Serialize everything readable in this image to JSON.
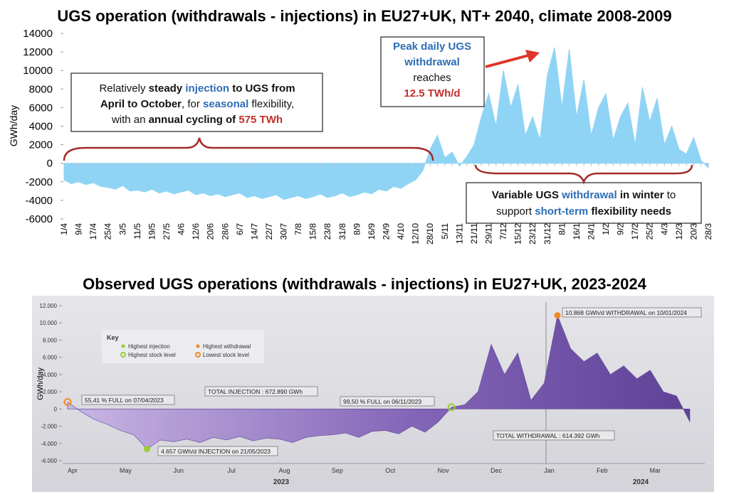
{
  "chart_data": [
    {
      "type": "area",
      "title": "UGS operation (withdrawals - injections) in EU27+UK, NT+ 2040, climate 2008-2009",
      "y_label": "GWh/day",
      "color": "#8fd4f5",
      "ylim": [
        -6000,
        14000
      ],
      "yticks": [
        -6000,
        -4000,
        -2000,
        0,
        2000,
        4000,
        6000,
        8000,
        10000,
        12000,
        14000
      ],
      "categories": [
        "1/4",
        null,
        "9/4",
        null,
        "17/4",
        null,
        "25/4",
        null,
        "3/5",
        null,
        "11/5",
        null,
        "19/5",
        null,
        "27/5",
        null,
        "4/6",
        null,
        "12/6",
        null,
        "20/6",
        null,
        "28/6",
        null,
        "6/7",
        null,
        "14/7",
        null,
        "22/7",
        null,
        "30/7",
        null,
        "7/8",
        null,
        "15/8",
        null,
        "23/8",
        null,
        "31/8",
        null,
        "8/9",
        null,
        "16/9",
        null,
        "24/9",
        null,
        "4/10",
        null,
        "12/10",
        null,
        "28/10",
        null,
        "5/11",
        null,
        "13/11",
        null,
        "21/11",
        null,
        "29/11",
        null,
        "7/12",
        null,
        "15/12",
        null,
        "23/12",
        null,
        "31/12",
        null,
        "8/1",
        null,
        "16/1",
        null,
        "24/1",
        null,
        "1/2",
        null,
        "9/2",
        null,
        "17/2",
        null,
        "25/2",
        null,
        "4/3",
        null,
        "12/3",
        null,
        "20/3",
        null,
        "28/3"
      ],
      "values": [
        -1800,
        -2200,
        -2000,
        -2300,
        -2100,
        -2500,
        -2600,
        -2800,
        -2400,
        -3000,
        -2900,
        -3100,
        -2800,
        -3200,
        -3000,
        -3300,
        -3100,
        -2900,
        -3400,
        -3200,
        -3500,
        -3300,
        -3600,
        -3400,
        -3200,
        -3700,
        -3500,
        -3800,
        -3600,
        -3400,
        -3900,
        -3700,
        -3500,
        -3800,
        -3600,
        -3300,
        -3700,
        -3500,
        -3200,
        -3600,
        -3400,
        -3100,
        -3300,
        -2800,
        -3000,
        -2500,
        -2700,
        -2200,
        -1800,
        -800,
        1500,
        3000,
        600,
        1200,
        -300,
        700,
        2000,
        5000,
        7500,
        4000,
        10000,
        6000,
        8500,
        3000,
        5000,
        2500,
        9500,
        12500,
        6000,
        12300,
        5000,
        9000,
        3000,
        6000,
        7500,
        2500,
        5000,
        6500,
        2000,
        8200,
        4500,
        7000,
        2000,
        4000,
        1500,
        1000,
        2800,
        300,
        -500
      ],
      "annotations": [
        {
          "lines": [
            [
              {
                "text": "Relatively ",
                "style": "normal"
              },
              {
                "text": "steady ",
                "style": "bold"
              },
              {
                "text": "injection",
                "style": "blue"
              },
              {
                "text": " to UGS from",
                "style": "bold"
              }
            ],
            [
              {
                "text": "April to October",
                "style": "bold"
              },
              {
                "text": ", for ",
                "style": "normal"
              },
              {
                "text": "seasonal",
                "style": "blue"
              },
              {
                "text": " flexibility,",
                "style": "normal"
              }
            ],
            [
              {
                "text": "with an ",
                "style": "normal"
              },
              {
                "text": "annual cycling of ",
                "style": "bold"
              },
              {
                "text": "575 TWh",
                "style": "red"
              }
            ]
          ]
        },
        {
          "lines": [
            [
              {
                "text": "Peak daily UGS",
                "style": "blue"
              }
            ],
            [
              {
                "text": "withdrawal",
                "style": "blue"
              }
            ],
            [
              {
                "text": "reaches",
                "style": "normal"
              }
            ],
            [
              {
                "text": "12.5 TWh/d",
                "style": "red"
              }
            ]
          ]
        },
        {
          "lines": [
            [
              {
                "text": "Variable UGS ",
                "style": "bold"
              },
              {
                "text": "withdrawal",
                "style": "blue"
              },
              {
                "text": " in winter",
                "style": "bold"
              },
              {
                "text": " to",
                "style": "normal"
              }
            ],
            [
              {
                "text": "support ",
                "style": "normal"
              },
              {
                "text": "short-term",
                "style": "blue"
              },
              {
                "text": " flexibility needs",
                "style": "bold"
              }
            ]
          ]
        }
      ]
    },
    {
      "type": "area",
      "title": "Observed UGS operations (withdrawals - injections) in EU27+UK, 2023-2024",
      "y_label": "GWh/day",
      "color": "#5e4296",
      "ylim": [
        -6000,
        12000
      ],
      "yticks": [
        {
          "value": -6000,
          "label": "-6.000"
        },
        {
          "value": -4000,
          "label": "-4.000"
        },
        {
          "value": -2000,
          "label": "-2.000"
        },
        0,
        {
          "value": 2000,
          "label": "2.000"
        },
        {
          "value": 4000,
          "label": "4.000"
        },
        {
          "value": 6000,
          "label": "6.000"
        },
        {
          "value": 8000,
          "label": "8.000"
        },
        {
          "value": 10000,
          "label": "10.000"
        },
        {
          "value": 12000,
          "label": "12.000"
        }
      ],
      "categories": [
        "Apr",
        null,
        null,
        null,
        "May",
        null,
        null,
        null,
        "Jun",
        null,
        null,
        null,
        "Jul",
        null,
        null,
        null,
        "Aug",
        null,
        null,
        null,
        "Sep",
        null,
        null,
        null,
        "Oct",
        null,
        null,
        null,
        "Nov",
        null,
        null,
        null,
        "Dec",
        null,
        null,
        null,
        "Jan",
        null,
        null,
        null,
        "Feb",
        null,
        null,
        null,
        "Mar",
        null,
        null,
        null
      ],
      "x_group_labels": [
        "2023",
        "2024"
      ],
      "values": [
        800,
        -300,
        -1200,
        -1800,
        -2500,
        -3000,
        -4657,
        -3600,
        -3800,
        -3500,
        -3900,
        -3300,
        -3600,
        -3200,
        -3700,
        -3400,
        -3500,
        -3900,
        -3300,
        -3100,
        -3000,
        -2800,
        -3300,
        -2600,
        -2500,
        -2900,
        -2000,
        -2700,
        -1500,
        200,
        500,
        2000,
        7500,
        4000,
        6500,
        1000,
        3000,
        10868,
        7000,
        5500,
        6500,
        4000,
        5000,
        3500,
        4500,
        2000,
        1500,
        -1500
      ],
      "legend": {
        "title": "Key",
        "items": [
          {
            "name": "Highest injection",
            "color": "#9acd32",
            "marker": "dot"
          },
          {
            "name": "Highest withdrawal",
            "color": "#f08a24",
            "marker": "dot"
          },
          {
            "name": "Highest stock level",
            "color": "#9acd32",
            "marker": "ring"
          },
          {
            "name": "Lowest stock level",
            "color": "#f08a24",
            "marker": "ring"
          }
        ]
      },
      "annotations": [
        "55,41 % FULL on 07/04/2023",
        "TOTAL INJECTION : 672.890 GWh",
        "99,50 % FULL on 06/11/2023",
        "10.868 GWh/d WITHDRAWAL on 10/01/2024",
        "TOTAL WITHDRAWAL : 614.392 GWh",
        "4.657 GWh/d INJECTION on 21/05/2023"
      ]
    }
  ]
}
